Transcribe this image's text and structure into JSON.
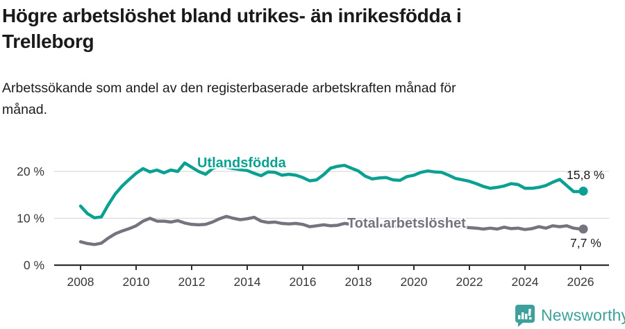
{
  "header": {
    "title_lines": [
      "Högre arbetslöshet bland utrikes- än inrikesfödda i",
      "Trelleborg"
    ],
    "subtitle_lines": [
      "Arbetssökande som andel av den registerbaserade arbetskraften månad för",
      "månad."
    ]
  },
  "chart_data": {
    "type": "line",
    "title": "Högre arbetslöshet bland utrikes- än inrikesfödda i Trelleborg",
    "subtitle": "Arbetssökande som andel av den registerbaserade arbetskraften månad för månad.",
    "xlabel": "",
    "ylabel": "",
    "grid": "horizontal",
    "ylim": [
      0,
      23.3
    ],
    "xlim": [
      2007.05,
      2027.0
    ],
    "y_ticks": [
      {
        "label": "0 %",
        "v": 0
      },
      {
        "label": "10 %",
        "v": 10
      },
      {
        "label": "20 %",
        "v": 20
      }
    ],
    "x_ticks": [
      {
        "label": "2008",
        "v": 2008
      },
      {
        "label": "2010",
        "v": 2010
      },
      {
        "label": "2012",
        "v": 2012
      },
      {
        "label": "2014",
        "v": 2014
      },
      {
        "label": "2016",
        "v": 2016
      },
      {
        "label": "2018",
        "v": 2018
      },
      {
        "label": "2020",
        "v": 2020
      },
      {
        "label": "2022",
        "v": 2022
      },
      {
        "label": "2024",
        "v": 2024
      },
      {
        "label": "2026",
        "v": 2026
      }
    ],
    "x": [
      2008,
      2008.25,
      2008.5,
      2008.75,
      2009,
      2009.25,
      2009.5,
      2009.75,
      2010,
      2010.25,
      2010.5,
      2010.75,
      2011,
      2011.25,
      2011.5,
      2011.75,
      2012,
      2012.25,
      2012.5,
      2012.75,
      2013,
      2013.25,
      2013.5,
      2013.75,
      2014,
      2014.25,
      2014.5,
      2014.75,
      2015,
      2015.25,
      2015.5,
      2015.75,
      2016,
      2016.25,
      2016.5,
      2016.75,
      2017,
      2017.25,
      2017.5,
      2017.75,
      2018,
      2018.25,
      2018.5,
      2018.75,
      2019,
      2019.25,
      2019.5,
      2019.75,
      2020,
      2020.25,
      2020.5,
      2020.75,
      2021,
      2021.25,
      2021.5,
      2021.75,
      2022,
      2022.25,
      2022.5,
      2022.75,
      2023,
      2023.25,
      2023.5,
      2023.75,
      2024,
      2024.25,
      2024.5,
      2024.75,
      2025,
      2025.25,
      2025.5,
      2025.75,
      2026,
      2026.1
    ],
    "series": [
      {
        "name": "Utlandsfödda",
        "color": "#0aa192",
        "end_label": "15,8 %",
        "end_value": 15.8,
        "values": [
          12.6,
          11.0,
          10.1,
          10.3,
          12.9,
          15.2,
          16.9,
          18.3,
          19.6,
          20.6,
          19.9,
          20.3,
          19.7,
          20.3,
          20.0,
          21.8,
          20.9,
          20.0,
          19.4,
          20.6,
          21.2,
          20.9,
          20.6,
          20.4,
          20.2,
          19.6,
          19.1,
          19.9,
          19.8,
          19.2,
          19.4,
          19.2,
          18.7,
          18.0,
          18.2,
          19.3,
          20.7,
          21.1,
          21.3,
          20.7,
          20.1,
          19.0,
          18.4,
          18.6,
          18.7,
          18.2,
          18.1,
          18.9,
          19.2,
          19.8,
          20.1,
          19.9,
          19.8,
          19.2,
          18.5,
          18.2,
          17.9,
          17.4,
          16.8,
          16.4,
          16.6,
          16.9,
          17.4,
          17.2,
          16.4,
          16.4,
          16.6,
          17.0,
          17.7,
          18.3,
          17.0,
          15.7,
          15.7,
          15.8
        ]
      },
      {
        "name": "Total arbetslöshet",
        "color": "#76737e",
        "end_label": "7,7 %",
        "end_value": 7.7,
        "values": [
          5.0,
          4.6,
          4.4,
          4.7,
          5.8,
          6.7,
          7.3,
          7.8,
          8.4,
          9.4,
          10.0,
          9.4,
          9.4,
          9.2,
          9.5,
          9.0,
          8.7,
          8.6,
          8.7,
          9.2,
          9.9,
          10.4,
          10.0,
          9.7,
          9.9,
          10.2,
          9.4,
          9.1,
          9.2,
          8.9,
          8.8,
          8.9,
          8.7,
          8.2,
          8.4,
          8.6,
          8.4,
          8.5,
          8.9,
          8.7,
          8.6,
          8.8,
          8.7,
          8.5,
          8.4,
          8.3,
          8.4,
          8.6,
          8.8,
          9.3,
          9.2,
          9.0,
          8.8,
          8.5,
          8.3,
          8.1,
          8.0,
          7.9,
          7.7,
          7.9,
          7.7,
          8.1,
          7.8,
          7.9,
          7.6,
          7.8,
          8.2,
          7.9,
          8.4,
          8.2,
          8.4,
          7.9,
          7.7,
          7.7
        ]
      }
    ],
    "colors": {
      "grid": "#d9d9d9",
      "axis": "#2e2e2e",
      "tick_text": "#383838"
    }
  },
  "footer": {
    "brand": "Newsworthy",
    "brand_color": "#3da09b",
    "logo_icon": "bar-chart-speech-bubble-icon"
  }
}
